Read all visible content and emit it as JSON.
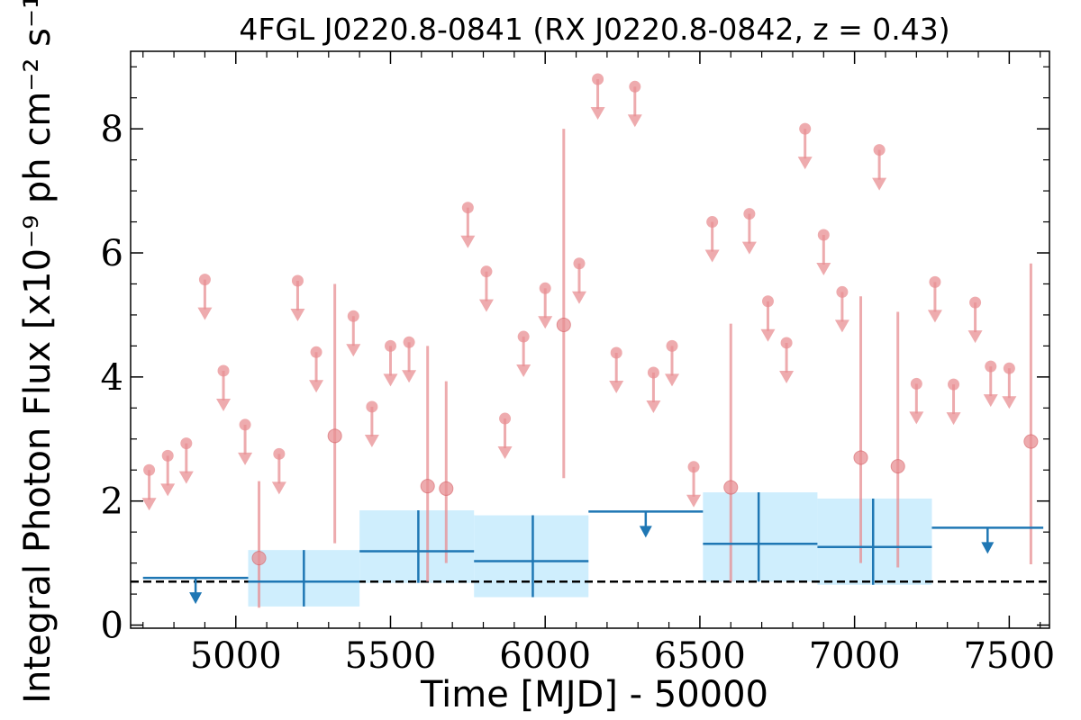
{
  "chart_data": {
    "type": "scatter",
    "title": "4FGL J0220.8-0841 (RX J0220.8-0842, z = 0.43)",
    "xlabel": "Time [MJD] - 50000",
    "ylabel": "Integral Photon Flux [x10⁻⁹ ph cm⁻² s⁻¹]",
    "xlim": [
      4660,
      7630
    ],
    "ylim": [
      -0.05,
      9.25
    ],
    "xticks": [
      5000,
      5500,
      6000,
      6500,
      7000,
      7500
    ],
    "yticks": [
      0,
      2,
      4,
      6,
      8
    ],
    "grid": false,
    "reference_level": 0.7,
    "colors": {
      "fine_points": "#e88f93",
      "coarse_bins": "#1f77b4",
      "coarse_band": "#cfeefd",
      "reference_line": "#000000"
    },
    "fine_upper_limits": [
      [
        4720,
        2.5
      ],
      [
        4780,
        2.73
      ],
      [
        4840,
        2.93
      ],
      [
        4900,
        5.57
      ],
      [
        4960,
        4.1
      ],
      [
        5030,
        3.23
      ],
      [
        5140,
        2.76
      ],
      [
        5200,
        5.55
      ],
      [
        5260,
        4.4
      ],
      [
        5380,
        4.98
      ],
      [
        5440,
        3.52
      ],
      [
        5500,
        4.5
      ],
      [
        5560,
        4.56
      ],
      [
        5750,
        6.73
      ],
      [
        5810,
        5.7
      ],
      [
        5870,
        3.33
      ],
      [
        5930,
        4.65
      ],
      [
        6000,
        5.43
      ],
      [
        6110,
        5.83
      ],
      [
        6170,
        8.8
      ],
      [
        6290,
        8.68
      ],
      [
        6230,
        4.39
      ],
      [
        6350,
        4.07
      ],
      [
        6410,
        4.5
      ],
      [
        6480,
        2.55
      ],
      [
        6540,
        6.5
      ],
      [
        6660,
        6.63
      ],
      [
        6720,
        5.22
      ],
      [
        6780,
        4.55
      ],
      [
        6840,
        8.0
      ],
      [
        6900,
        6.29
      ],
      [
        6960,
        5.37
      ],
      [
        7080,
        7.66
      ],
      [
        7200,
        3.89
      ],
      [
        7260,
        5.53
      ],
      [
        7320,
        3.88
      ],
      [
        7390,
        5.2
      ],
      [
        7440,
        4.17
      ],
      [
        7500,
        4.14
      ]
    ],
    "fine_detections": [
      {
        "x": 5075,
        "y": 1.08,
        "lo": 0.28,
        "hi": 2.32
      },
      {
        "x": 5320,
        "y": 3.05,
        "lo": 1.32,
        "hi": 5.5
      },
      {
        "x": 5620,
        "y": 2.24,
        "lo": 0.7,
        "hi": 4.5
      },
      {
        "x": 5680,
        "y": 2.2,
        "lo": 1.0,
        "hi": 3.93
      },
      {
        "x": 6060,
        "y": 4.84,
        "lo": 2.37,
        "hi": 8.0
      },
      {
        "x": 6600,
        "y": 2.22,
        "lo": 0.7,
        "hi": 4.86
      },
      {
        "x": 7020,
        "y": 2.7,
        "lo": 1.0,
        "hi": 5.3
      },
      {
        "x": 7140,
        "y": 2.56,
        "lo": 0.93,
        "hi": 5.05
      },
      {
        "x": 7570,
        "y": 2.96,
        "lo": 0.98,
        "hi": 5.83
      }
    ],
    "coarse_bins": [
      {
        "x0": 4700,
        "x1": 5040,
        "y": 0.76,
        "upper_limit": true
      },
      {
        "x0": 5040,
        "x1": 5400,
        "y": 0.7,
        "lo": 0.3,
        "hi": 1.21,
        "xc": 5220
      },
      {
        "x0": 5400,
        "x1": 5770,
        "y": 1.19,
        "lo": 0.68,
        "hi": 1.85,
        "xc": 5590
      },
      {
        "x0": 5770,
        "x1": 6140,
        "y": 1.03,
        "lo": 0.45,
        "hi": 1.77,
        "xc": 5960
      },
      {
        "x0": 6140,
        "x1": 6510,
        "y": 1.83,
        "upper_limit": true
      },
      {
        "x0": 6510,
        "x1": 6880,
        "y": 1.31,
        "lo": 0.7,
        "hi": 2.14,
        "xc": 6690
      },
      {
        "x0": 6880,
        "x1": 7250,
        "y": 1.26,
        "lo": 0.65,
        "hi": 2.04,
        "xc": 7060
      },
      {
        "x0": 7250,
        "x1": 7610,
        "y": 1.57,
        "upper_limit": true
      }
    ]
  }
}
